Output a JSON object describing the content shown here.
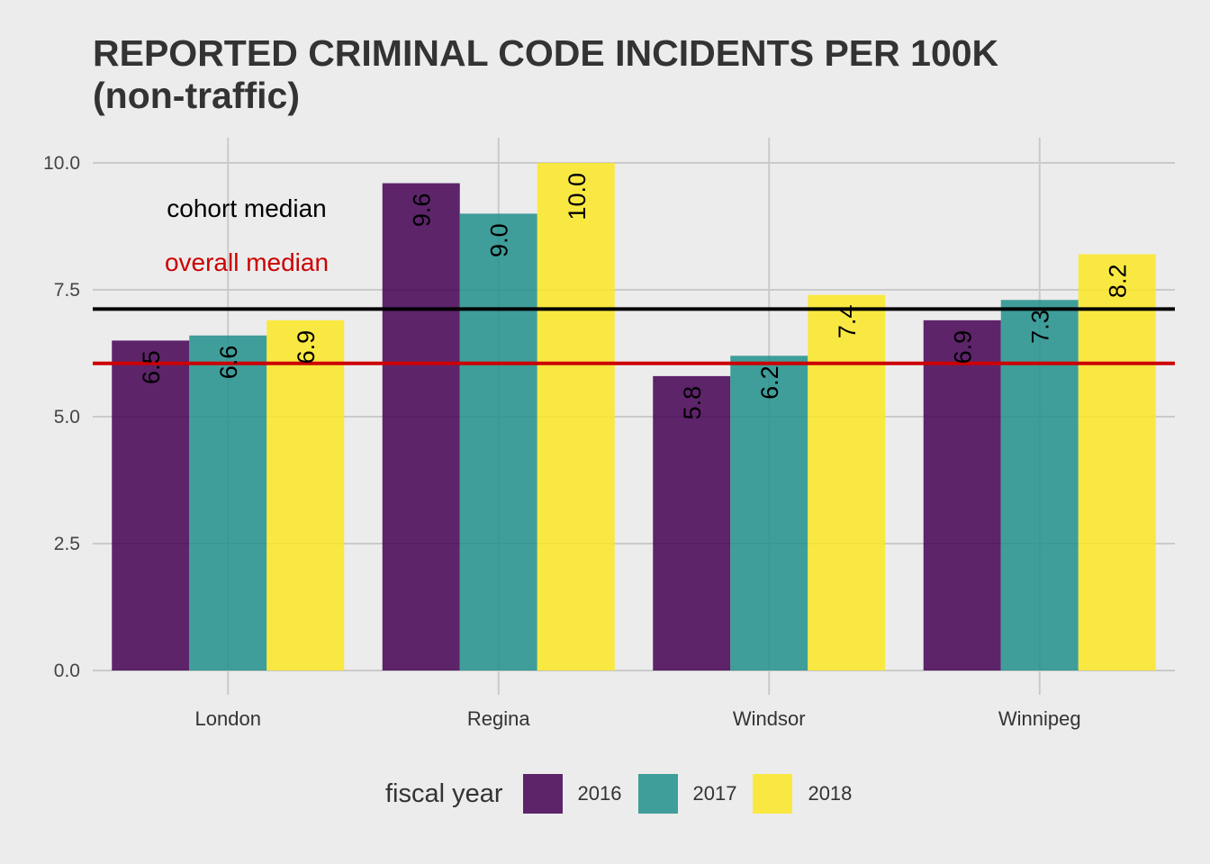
{
  "chart_data": {
    "type": "bar",
    "title_line1": "REPORTED CRIMINAL CODE INCIDENTS PER 100K",
    "title_line2": "(non-traffic)",
    "categories": [
      "London",
      "Regina",
      "Windsor",
      "Winnipeg"
    ],
    "series": [
      {
        "name": "2016",
        "color": "#440154",
        "values": [
          6.5,
          9.6,
          5.8,
          6.9
        ]
      },
      {
        "name": "2017",
        "color": "#21908C",
        "values": [
          6.6,
          9.0,
          6.2,
          7.3
        ]
      },
      {
        "name": "2018",
        "color": "#FDE725",
        "values": [
          6.9,
          10.0,
          7.4,
          8.2
        ]
      }
    ],
    "ylim": [
      0,
      10.5
    ],
    "yticks": [
      0,
      2.5,
      5,
      7.5,
      10
    ],
    "ytick_labels": [
      "0.0",
      "2.5",
      "5.0",
      "7.5",
      "10.0"
    ],
    "reference_lines": [
      {
        "name": "cohort median",
        "value": 7.12,
        "color": "#000000"
      },
      {
        "name": "overall median",
        "value": 6.05,
        "color": "#CC0000"
      }
    ],
    "annotations": [
      {
        "text": "cohort median",
        "color": "#000000"
      },
      {
        "text": "overall median",
        "color": "#CC0000"
      }
    ],
    "legend": {
      "title": "fiscal year",
      "position": "bottom"
    },
    "grid": true
  }
}
